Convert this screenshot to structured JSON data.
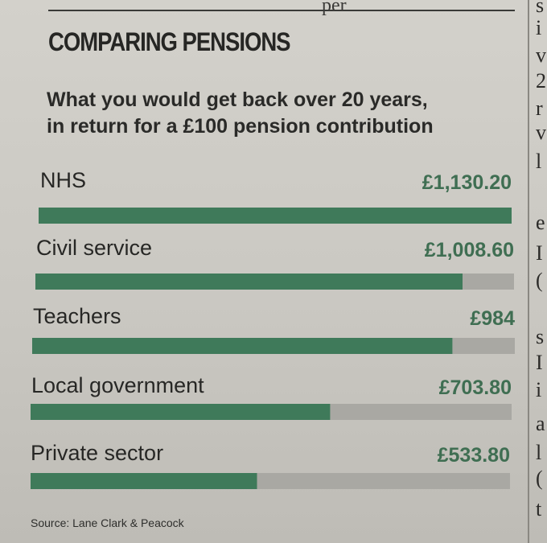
{
  "header": {
    "bleed_text": "per",
    "title": "COMPARING PENSIONS",
    "subtitle_line1": "What you would get back over 20 years,",
    "subtitle_line2": "in return for a £100 pension contribution"
  },
  "right_column_letters": [
    "s",
    "i",
    "v",
    "2",
    "r",
    "v",
    "l",
    "e",
    "I",
    "(",
    "s",
    "I",
    "i",
    "a",
    "l",
    "(",
    "t"
  ],
  "chart_data": {
    "type": "bar",
    "orientation": "horizontal",
    "title": "COMPARING PENSIONS",
    "subtitle": "What you would get back over 20 years, in return for a £100 pension contribution",
    "categories": [
      "NHS",
      "Civil service",
      "Teachers",
      "Local government",
      "Private sector"
    ],
    "values": [
      1130.2,
      1008.6,
      984,
      703.8,
      533.8
    ],
    "value_labels": [
      "£1,130.20",
      "£1,008.60",
      "£984",
      "£703.80",
      "£533.80"
    ],
    "xlim": [
      0,
      1130.2
    ],
    "unit": "£",
    "colors": {
      "bar": "#3f7a5a",
      "track": "#a9a8a3",
      "label": "#3f6e52"
    },
    "grid": false,
    "source": "Source: Lane Clark & Peacock"
  }
}
